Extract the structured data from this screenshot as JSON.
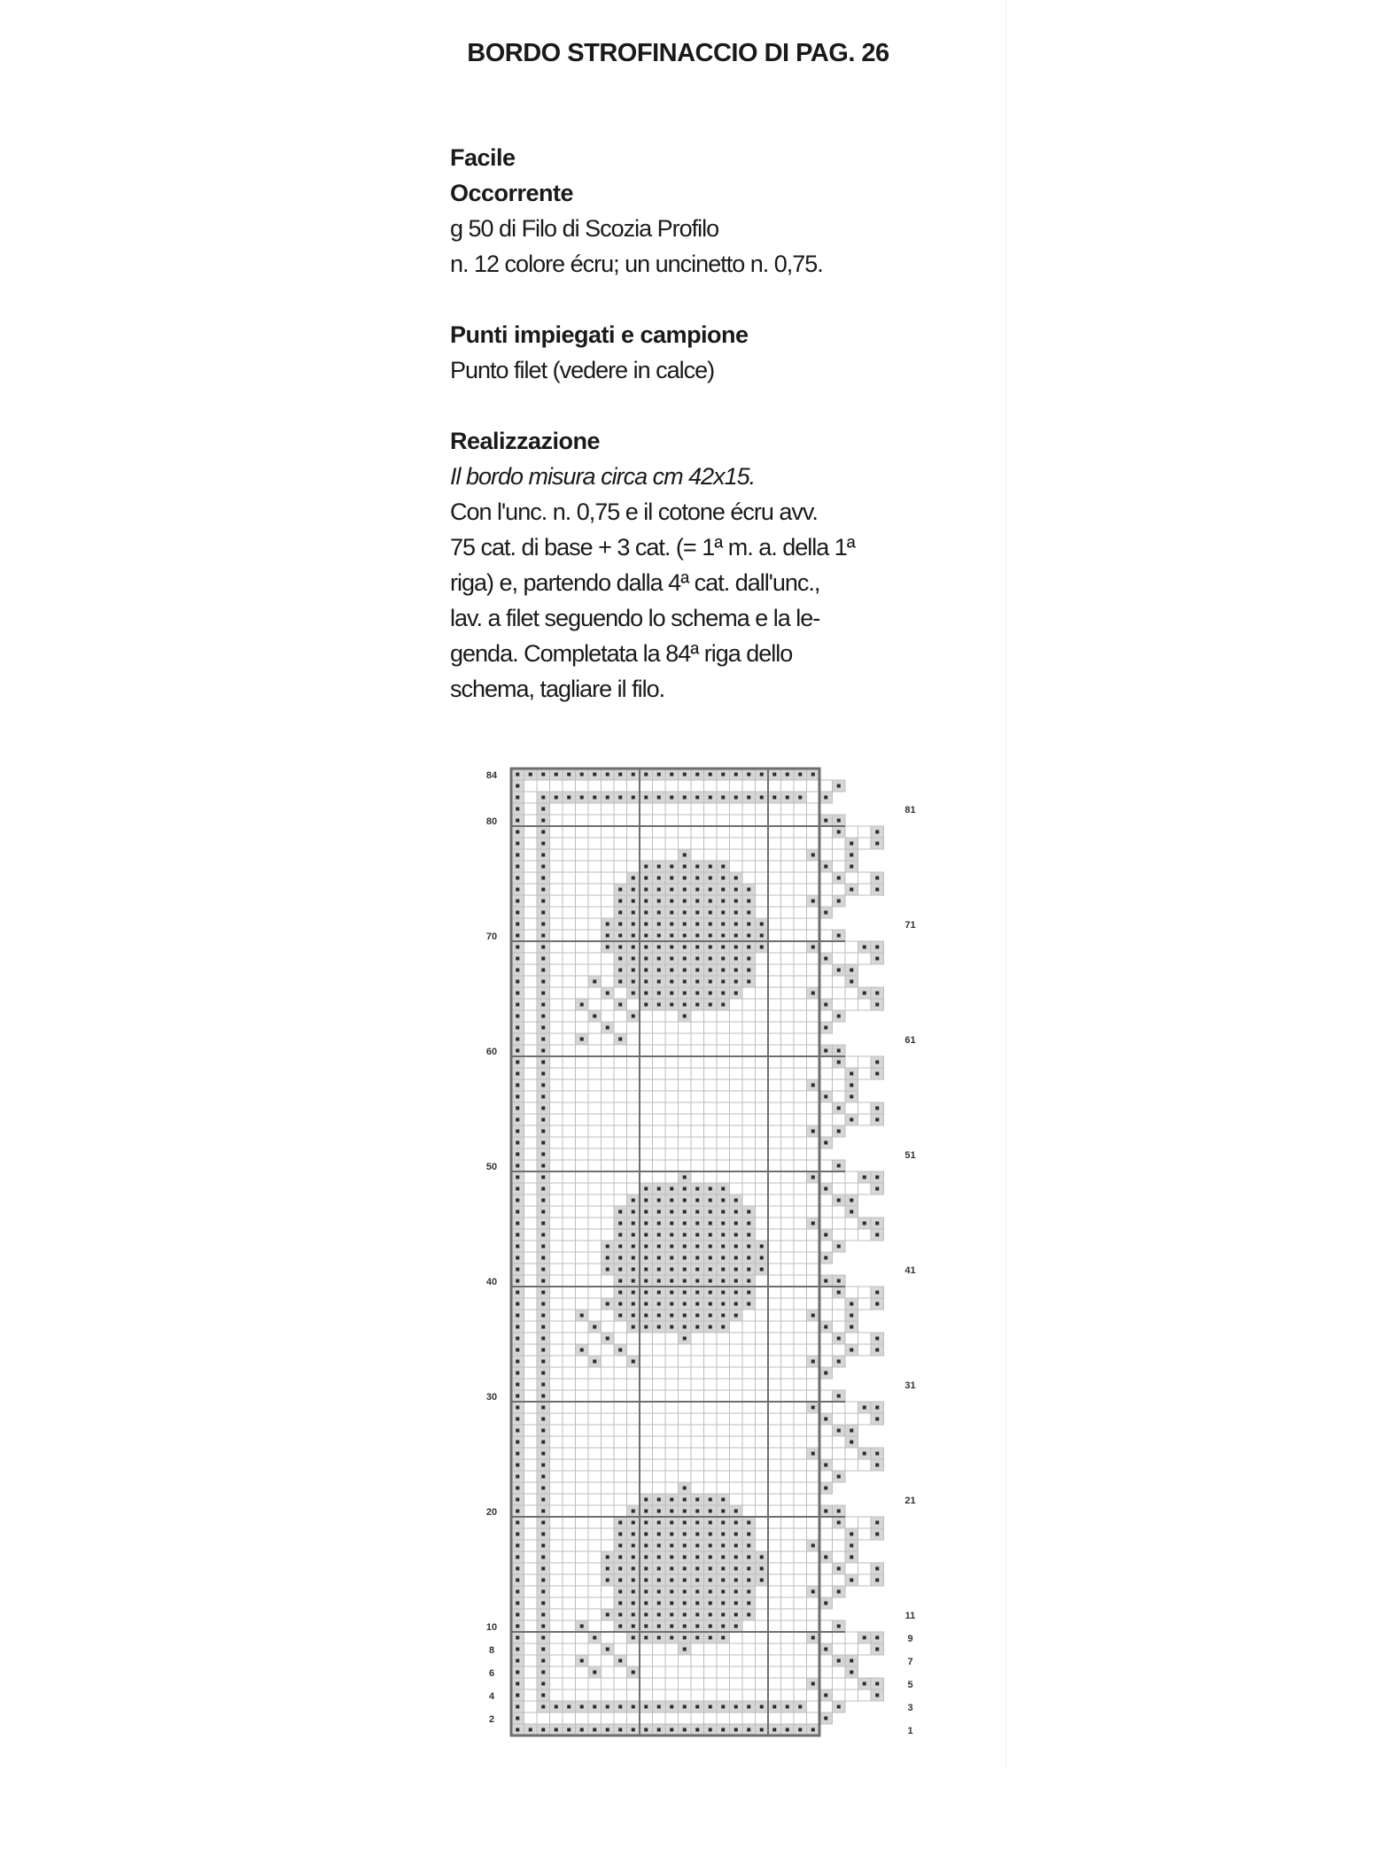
{
  "title": "BORDO STROFINACCIO DI PAG. 26",
  "difficulty": "Facile",
  "materials": {
    "heading": "Occorrente",
    "lines": [
      "g 50 di Filo di Scozia Profilo",
      "n. 12 colore écru; un uncinetto n. 0,75."
    ]
  },
  "stitches": {
    "heading": "Punti impiegati e campione",
    "lines": [
      "Punto filet (vedere in calce)"
    ]
  },
  "making": {
    "heading": "Realizzazione",
    "size_line": "Il bordo misura circa cm 42x15.",
    "lines": [
      "Con l'unc. n. 0,75 e il cotone écru avv.",
      "75 cat. di base + 3 cat. (= 1ª m. a. della 1ª",
      "riga) e, partendo dalla 4ª cat. dall'unc.,",
      "lav. a filet seguendo lo schema e la le-",
      "genda. Completata la 84ª riga dello",
      "schema, tagliare il filo."
    ]
  },
  "diagram": {
    "rows": 84,
    "left_row_labels": [
      "84",
      "80",
      "70",
      "60",
      "50",
      "40",
      "30",
      "20",
      "10",
      "8",
      "6",
      "4",
      "2"
    ],
    "right_row_labels": [
      "81",
      "71",
      "61",
      "51",
      "41",
      "31",
      "21",
      "11",
      "9",
      "7",
      "5",
      "3",
      "1"
    ],
    "colors": {
      "grid": "#bdbdbd",
      "major": "#6e6e6e",
      "fill": "#d6d6d6",
      "dot": "#2a2a2a"
    }
  }
}
